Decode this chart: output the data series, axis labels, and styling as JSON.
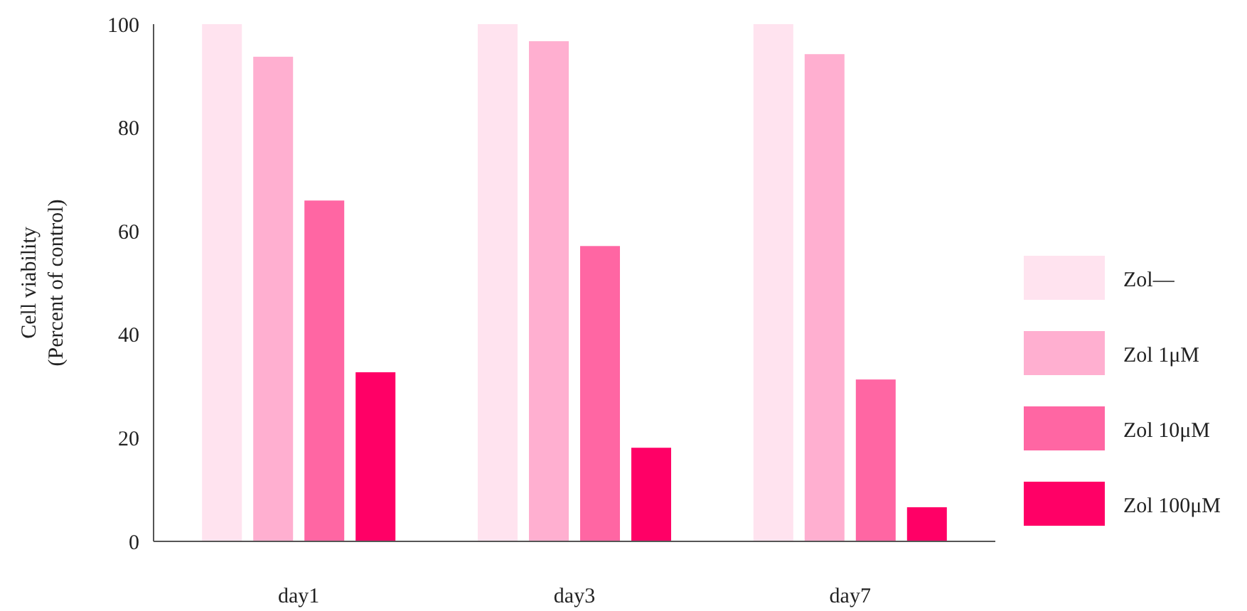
{
  "chart_data": {
    "type": "bar",
    "ylabel": "Cell viability\n(Percent of control)",
    "categories": [
      "day1",
      "day3",
      "day7"
    ],
    "series": [
      {
        "name": "Zol—",
        "color": "#ffe3ef",
        "values": [
          100,
          100,
          100
        ]
      },
      {
        "name": "Zol 1μM",
        "color": "#ffafd0",
        "values": [
          93.7,
          96.7,
          94.2
        ]
      },
      {
        "name": "Zol 10μM",
        "color": "#ff66a3",
        "values": [
          65.9,
          57.1,
          31.3
        ]
      },
      {
        "name": "Zol 100μM",
        "color": "#ff0066",
        "values": [
          32.7,
          18.1,
          6.6
        ]
      }
    ],
    "ylim": [
      0,
      100
    ],
    "yticks": [
      0,
      20,
      40,
      60,
      80,
      100
    ],
    "legend": "right"
  }
}
